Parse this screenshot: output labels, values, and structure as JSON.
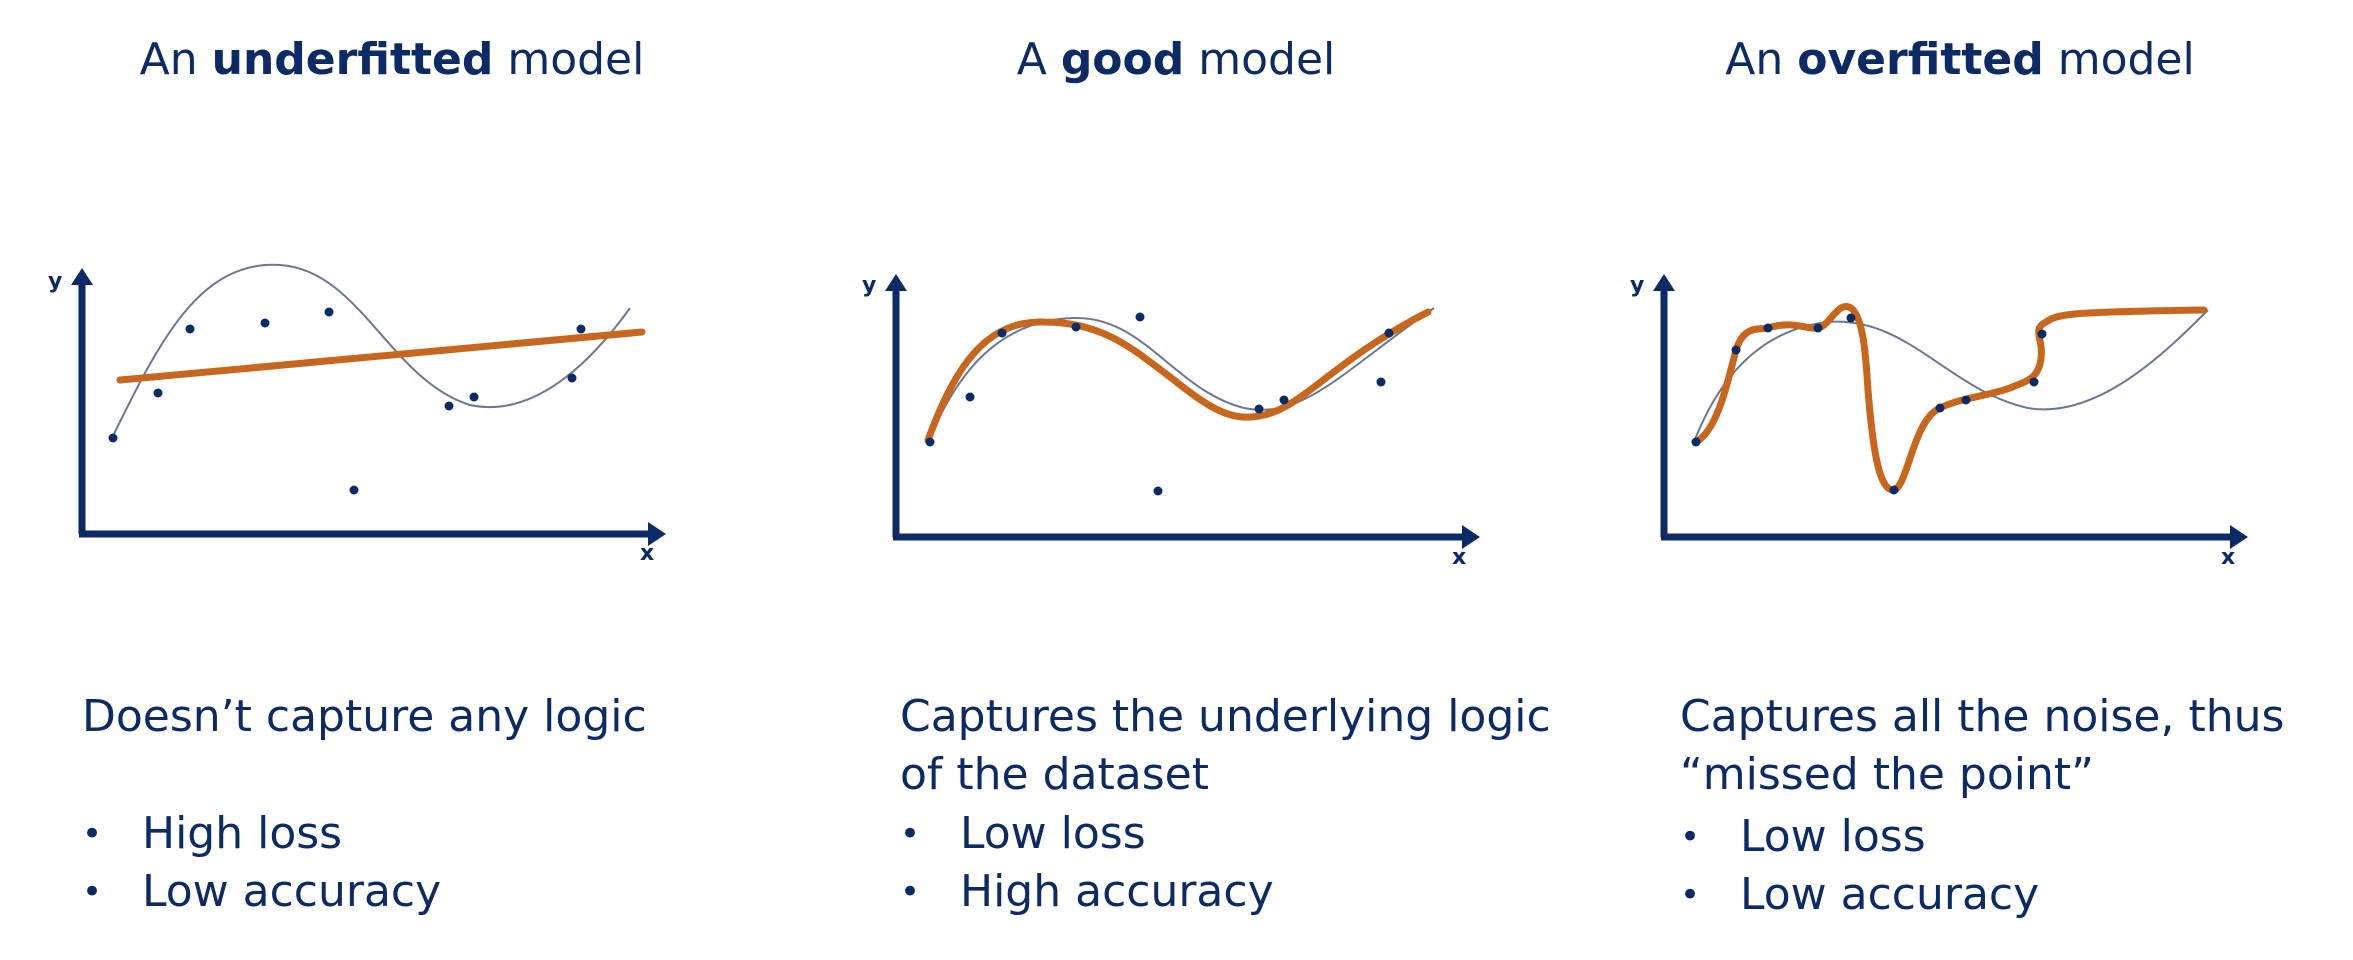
{
  "colors": {
    "navy": "#0b2a66",
    "orange": "#c8661e",
    "thin_curve": "#6a7894"
  },
  "panels": [
    {
      "title_pre": "An ",
      "title_bold": "underfitted",
      "title_post": " model",
      "x_label": "x",
      "y_label": "y",
      "description": "Doesn’t capture any logic",
      "bullets": [
        "High loss",
        "Low accuracy"
      ]
    },
    {
      "title_pre": "A ",
      "title_bold": "good",
      "title_post": " model",
      "x_label": "x",
      "y_label": "y",
      "description": "Captures the underlying logic of the dataset",
      "bullets": [
        "Low loss",
        "High accuracy"
      ]
    },
    {
      "title_pre": "An ",
      "title_bold": "overfitted",
      "title_post": " model",
      "x_label": "x",
      "y_label": "y",
      "description": "Captures all the noise, thus “missed the point”",
      "bullets": [
        "Low loss",
        "Low accuracy"
      ]
    }
  ]
}
